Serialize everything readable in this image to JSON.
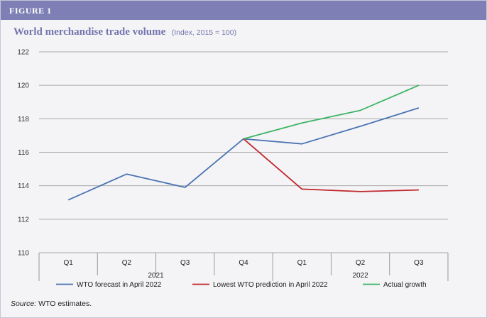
{
  "figure_label": "FIGURE 1",
  "source": {
    "label": "Source:",
    "text": "WTO estimates."
  },
  "colors": {
    "header_bar": "#7e80b5",
    "title": "#7375ae",
    "background": "#f4f4f6"
  },
  "chart_data": {
    "type": "line",
    "title": "World merchandise trade volume",
    "subtitle": "(Index, 2015 = 100)",
    "xlabel": "",
    "ylabel": "",
    "categories": [
      "Q1",
      "Q2",
      "Q3",
      "Q4",
      "Q1",
      "Q2",
      "Q3"
    ],
    "groups": [
      {
        "label": "2021",
        "categories": [
          "Q1",
          "Q2",
          "Q3",
          "Q4"
        ]
      },
      {
        "label": "2022",
        "categories": [
          "Q1",
          "Q2",
          "Q3"
        ]
      }
    ],
    "ylim": [
      110,
      122
    ],
    "yticks": [
      110,
      112,
      114,
      116,
      118,
      120,
      122
    ],
    "grid": true,
    "legend_position": "bottom",
    "series": [
      {
        "name": "WTO forecast in April 2022",
        "color": "#4a73b2",
        "values": [
          113.15,
          114.7,
          113.9,
          116.8,
          116.5,
          117.55,
          118.65
        ]
      },
      {
        "name": "Lowest WTO prediction in April 2022",
        "color": "#c0272d",
        "values": [
          null,
          null,
          null,
          116.8,
          113.8,
          113.65,
          113.75
        ]
      },
      {
        "name": "Actual growth",
        "color": "#3cb464",
        "values": [
          null,
          null,
          null,
          116.8,
          117.75,
          118.5,
          120.0
        ]
      }
    ]
  }
}
